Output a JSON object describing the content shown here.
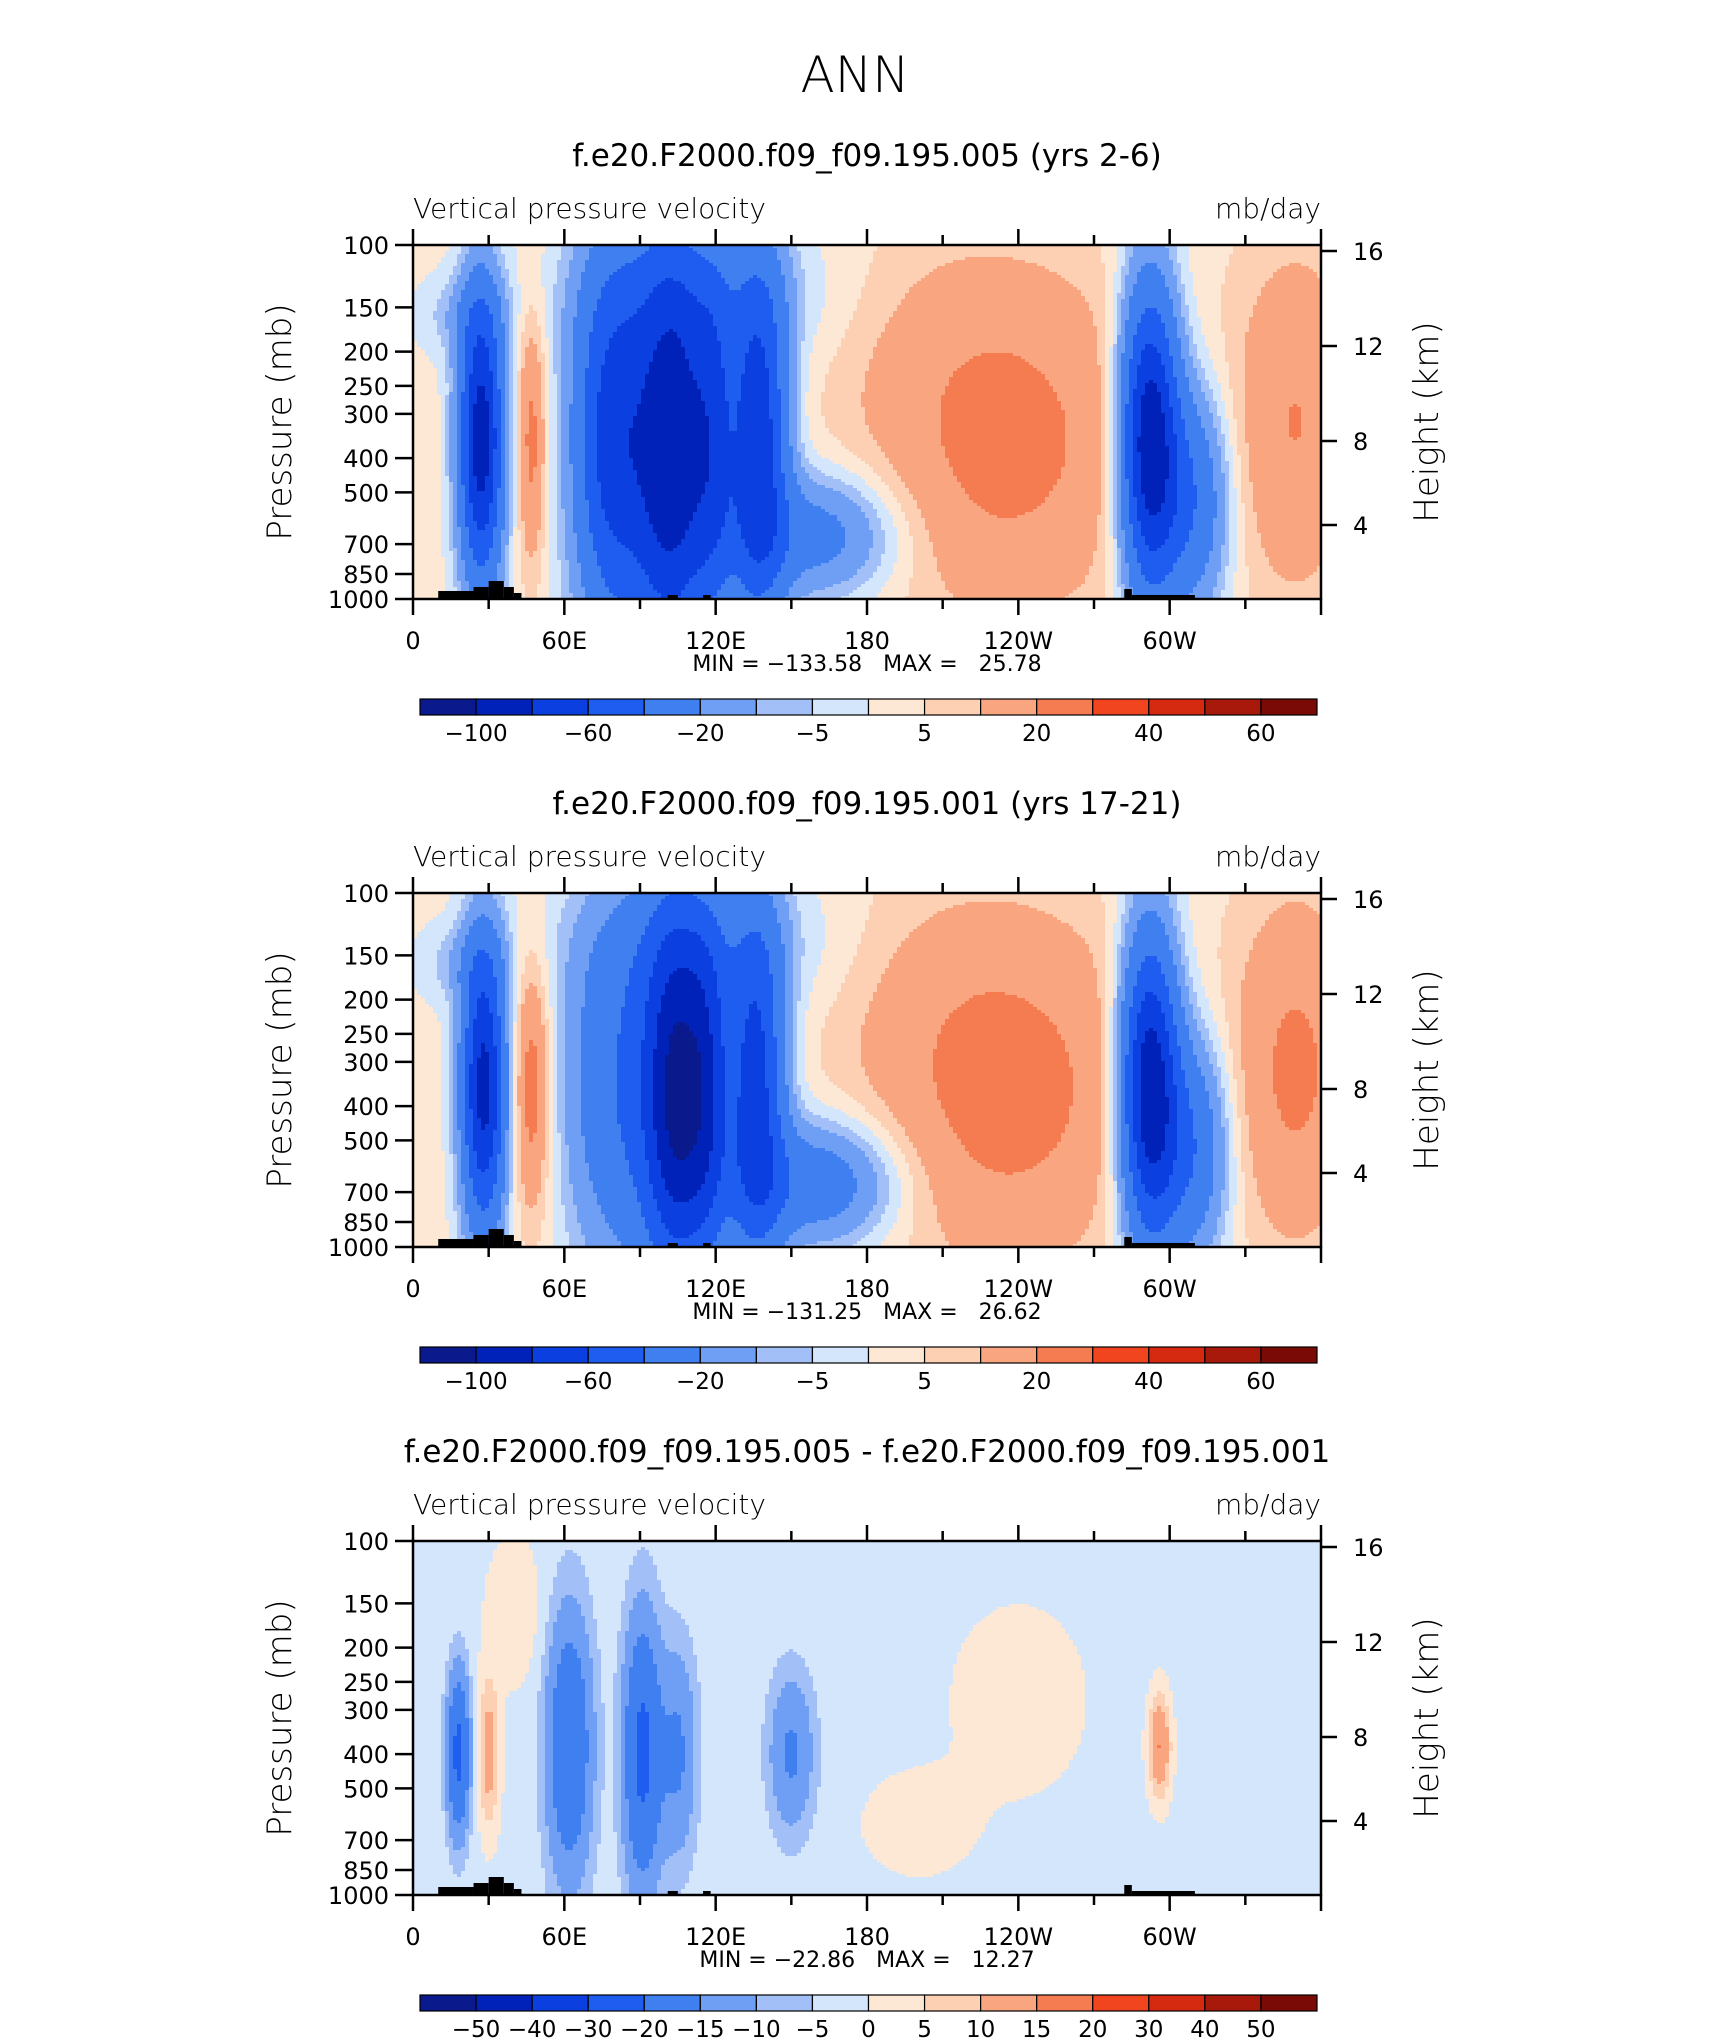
{
  "page_title": "ANN",
  "chart_data": [
    {
      "type": "contour",
      "title": "f.e20.F2000.f09_f09.195.005 (yrs 2-6)",
      "left_label": "Vertical pressure velocity",
      "right_label": "mb/day",
      "ylabel": "Pressure (mb)",
      "ylabel_right": "Height (km)",
      "y_ticks": [
        "100",
        "150",
        "200",
        "250",
        "300",
        "400",
        "500",
        "700",
        "850",
        "1000"
      ],
      "y_right_ticks": [
        "16",
        "12",
        "8",
        "4"
      ],
      "x_ticks": [
        "0",
        "60E",
        "120E",
        "180",
        "120W",
        "60W"
      ],
      "xlim": [
        0,
        360
      ],
      "ylim": [
        1000,
        100
      ],
      "stats": "MIN = −133.58   MAX =   25.78",
      "min": -133.58,
      "max": 25.78,
      "colorbar_labels": [
        "−100",
        "−60",
        "−20",
        "−5",
        "5",
        "20",
        "40",
        "60"
      ],
      "colorbar_label_slots": [
        1,
        3,
        5,
        7,
        9,
        11,
        13,
        15
      ],
      "field": {
        "scale": 1,
        "background": 2,
        "blobs": [
          {
            "cx": 27,
            "cy": 0.55,
            "sx": 6,
            "sy": 0.28,
            "a": -95
          },
          {
            "cx": 47,
            "cy": 0.55,
            "sx": 4,
            "sy": 0.25,
            "a": 22
          },
          {
            "cx": 20,
            "cy": 0.2,
            "sx": 12,
            "sy": 0.08,
            "a": -10
          },
          {
            "cx": 78,
            "cy": 0.55,
            "sx": 10,
            "sy": 0.35,
            "a": -55
          },
          {
            "cx": 96,
            "cy": 0.6,
            "sx": 18,
            "sy": 0.5,
            "a": -30
          },
          {
            "cx": 103,
            "cy": 0.58,
            "sx": 10,
            "sy": 0.4,
            "a": -70
          },
          {
            "cx": 119,
            "cy": 0.55,
            "sx": 6,
            "sy": 0.35,
            "a": -40
          },
          {
            "cx": 137,
            "cy": 0.55,
            "sx": 8,
            "sy": 0.35,
            "a": -75
          },
          {
            "cx": 160,
            "cy": 0.82,
            "sx": 22,
            "sy": 0.12,
            "a": -30
          },
          {
            "cx": 120,
            "cy": 0.15,
            "sx": 40,
            "sy": 0.15,
            "a": -12
          },
          {
            "cx": 235,
            "cy": 0.55,
            "sx": 38,
            "sy": 0.35,
            "a": 22
          },
          {
            "cx": 185,
            "cy": 0.2,
            "sx": 30,
            "sy": 0.2,
            "a": 4
          },
          {
            "cx": 292,
            "cy": 0.55,
            "sx": 8,
            "sy": 0.3,
            "a": -100
          },
          {
            "cx": 309,
            "cy": 0.72,
            "sx": 10,
            "sy": 0.22,
            "a": -40
          },
          {
            "cx": 350,
            "cy": 0.5,
            "sx": 18,
            "sy": 0.35,
            "a": 18
          }
        ]
      }
    },
    {
      "type": "contour",
      "title": "f.e20.F2000.f09_f09.195.001 (yrs 17-21)",
      "left_label": "Vertical pressure velocity",
      "right_label": "mb/day",
      "ylabel": "Pressure (mb)",
      "ylabel_right": "Height (km)",
      "y_ticks": [
        "100",
        "150",
        "200",
        "250",
        "300",
        "400",
        "500",
        "700",
        "850",
        "1000"
      ],
      "y_right_ticks": [
        "16",
        "12",
        "8",
        "4"
      ],
      "x_ticks": [
        "0",
        "60E",
        "120E",
        "180",
        "120W",
        "60W"
      ],
      "xlim": [
        0,
        360
      ],
      "ylim": [
        1000,
        100
      ],
      "stats": "MIN = −131.25   MAX =   26.62",
      "min": -131.25,
      "max": 26.62,
      "colorbar_labels": [
        "−100",
        "−60",
        "−20",
        "−5",
        "5",
        "20",
        "40",
        "60"
      ],
      "colorbar_label_slots": [
        1,
        3,
        5,
        7,
        9,
        11,
        13,
        15
      ],
      "field": {
        "scale": 1,
        "background": 2,
        "blobs": [
          {
            "cx": 28,
            "cy": 0.55,
            "sx": 6,
            "sy": 0.28,
            "a": -90
          },
          {
            "cx": 47,
            "cy": 0.55,
            "sx": 5,
            "sy": 0.25,
            "a": 24
          },
          {
            "cx": 20,
            "cy": 0.2,
            "sx": 12,
            "sy": 0.08,
            "a": -10
          },
          {
            "cx": 75,
            "cy": 0.55,
            "sx": 12,
            "sy": 0.35,
            "a": -25
          },
          {
            "cx": 100,
            "cy": 0.55,
            "sx": 14,
            "sy": 0.4,
            "a": -50
          },
          {
            "cx": 105,
            "cy": 0.58,
            "sx": 8,
            "sy": 0.35,
            "a": -60
          },
          {
            "cx": 117,
            "cy": 0.55,
            "sx": 6,
            "sy": 0.35,
            "a": -45
          },
          {
            "cx": 136,
            "cy": 0.55,
            "sx": 8,
            "sy": 0.35,
            "a": -70
          },
          {
            "cx": 160,
            "cy": 0.82,
            "sx": 22,
            "sy": 0.12,
            "a": -35
          },
          {
            "cx": 120,
            "cy": 0.15,
            "sx": 40,
            "sy": 0.15,
            "a": -12
          },
          {
            "cx": 235,
            "cy": 0.55,
            "sx": 38,
            "sy": 0.35,
            "a": 23
          },
          {
            "cx": 185,
            "cy": 0.2,
            "sx": 30,
            "sy": 0.2,
            "a": 4
          },
          {
            "cx": 292,
            "cy": 0.55,
            "sx": 8,
            "sy": 0.3,
            "a": -100
          },
          {
            "cx": 309,
            "cy": 0.72,
            "sx": 10,
            "sy": 0.22,
            "a": -40
          },
          {
            "cx": 350,
            "cy": 0.5,
            "sx": 18,
            "sy": 0.35,
            "a": 20
          }
        ]
      }
    },
    {
      "type": "contour",
      "title": "f.e20.F2000.f09_f09.195.005 - f.e20.F2000.f09_f09.195.001",
      "left_label": "Vertical pressure velocity",
      "right_label": "mb/day",
      "ylabel": "Pressure (mb)",
      "ylabel_right": "Height (km)",
      "y_ticks": [
        "100",
        "150",
        "200",
        "250",
        "300",
        "400",
        "500",
        "700",
        "850",
        "1000"
      ],
      "y_right_ticks": [
        "16",
        "12",
        "8",
        "4"
      ],
      "x_ticks": [
        "0",
        "60E",
        "120E",
        "180",
        "120W",
        "60W"
      ],
      "xlim": [
        0,
        360
      ],
      "ylim": [
        1000,
        100
      ],
      "stats": "MIN = −22.86   MAX =   12.27",
      "min": -22.86,
      "max": 12.27,
      "colorbar_labels": [
        "−50",
        "−40",
        "−30",
        "−20",
        "−15",
        "−10",
        "−5",
        "0",
        "5",
        "10",
        "15",
        "20",
        "30",
        "40",
        "50"
      ],
      "colorbar_label_slots": [
        1,
        2,
        3,
        4,
        5,
        6,
        7,
        8,
        9,
        10,
        11,
        12,
        13,
        14,
        15
      ],
      "field": {
        "scale": 0.5,
        "background": -1,
        "blobs": [
          {
            "cx": 18,
            "cy": 0.6,
            "sx": 3,
            "sy": 0.15,
            "a": -22
          },
          {
            "cx": 30,
            "cy": 0.6,
            "sx": 3,
            "sy": 0.15,
            "a": 8
          },
          {
            "cx": 62,
            "cy": 0.58,
            "sx": 6,
            "sy": 0.25,
            "a": -18
          },
          {
            "cx": 91,
            "cy": 0.6,
            "sx": 5,
            "sy": 0.25,
            "a": -22
          },
          {
            "cx": 105,
            "cy": 0.6,
            "sx": 5,
            "sy": 0.2,
            "a": -10
          },
          {
            "cx": 150,
            "cy": 0.6,
            "sx": 6,
            "sy": 0.15,
            "a": -10
          },
          {
            "cx": 296,
            "cy": 0.58,
            "sx": 3,
            "sy": 0.1,
            "a": 11
          },
          {
            "cx": 40,
            "cy": 0.2,
            "sx": 8,
            "sy": 0.15,
            "a": 3
          },
          {
            "cx": 200,
            "cy": 0.8,
            "sx": 15,
            "sy": 0.1,
            "a": 3
          },
          {
            "cx": 240,
            "cy": 0.45,
            "sx": 20,
            "sy": 0.2,
            "a": 2.5
          }
        ]
      }
    }
  ]
}
